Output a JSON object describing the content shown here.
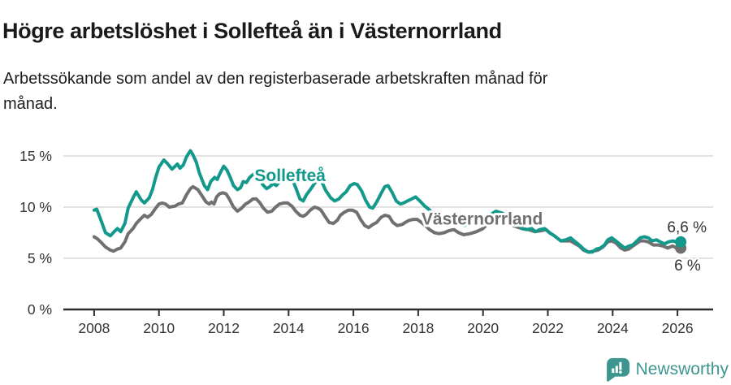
{
  "header": {
    "title": "Högre arbetslöshet i Sollefteå än i Västernorrland",
    "subtitle": "Arbetssökande som andel av den registerbaserade arbetskraften månad för månad."
  },
  "footer": {
    "brand": "Newsworthy",
    "brand_color": "#3C968F",
    "logo_icon": "chart-speech-bubble-icon"
  },
  "colors": {
    "solleftea_line": "#12998C",
    "vasternorrland_line": "#707070",
    "axis": "#2e2e2e",
    "tick_label": "#333333",
    "gridline": "#dcdcdc",
    "value_label": "#333333"
  },
  "chart_data": {
    "type": "line",
    "title": "Högre arbetslöshet i Sollefteå än i Västernorrland",
    "subtitle": "Arbetssökande som andel av den registerbaserade arbetskraften månad för månad.",
    "grid": "horizontal",
    "legend_position": "inline-labels",
    "xlim": [
      2007.05,
      2027.1
    ],
    "ylim": [
      0,
      16.9
    ],
    "x_ticks": [
      2008,
      2010,
      2012,
      2014,
      2016,
      2018,
      2020,
      2022,
      2024,
      2026
    ],
    "x_tick_labels": [
      "2008",
      "2010",
      "2012",
      "2014",
      "2016",
      "2018",
      "2020",
      "2022",
      "2024",
      "2026"
    ],
    "y_ticks": [
      0,
      5,
      10,
      15
    ],
    "y_tick_labels": [
      "0 %",
      "5 %",
      "10 %",
      "15 %"
    ],
    "series": [
      {
        "name": "Västernorrland",
        "color": "#707070",
        "end_dot": true,
        "points": [
          [
            2008.0,
            7.1
          ],
          [
            2008.1,
            6.9
          ],
          [
            2008.2,
            6.6
          ],
          [
            2008.35,
            6.1
          ],
          [
            2008.5,
            5.8
          ],
          [
            2008.6,
            5.7
          ],
          [
            2008.72,
            5.9
          ],
          [
            2008.82,
            6.0
          ],
          [
            2008.95,
            6.6
          ],
          [
            2009.05,
            7.4
          ],
          [
            2009.2,
            7.9
          ],
          [
            2009.3,
            8.4
          ],
          [
            2009.45,
            8.9
          ],
          [
            2009.55,
            9.2
          ],
          [
            2009.65,
            9.0
          ],
          [
            2009.77,
            9.3
          ],
          [
            2009.9,
            9.9
          ],
          [
            2010.0,
            10.3
          ],
          [
            2010.1,
            10.4
          ],
          [
            2010.2,
            10.3
          ],
          [
            2010.32,
            10.0
          ],
          [
            2010.5,
            10.1
          ],
          [
            2010.6,
            10.3
          ],
          [
            2010.72,
            10.4
          ],
          [
            2010.85,
            11.2
          ],
          [
            2010.97,
            11.8
          ],
          [
            2011.05,
            12.0
          ],
          [
            2011.2,
            11.7
          ],
          [
            2011.35,
            11.0
          ],
          [
            2011.45,
            10.5
          ],
          [
            2011.55,
            10.3
          ],
          [
            2011.62,
            10.5
          ],
          [
            2011.7,
            10.3
          ],
          [
            2011.78,
            11.0
          ],
          [
            2011.87,
            11.3
          ],
          [
            2011.97,
            11.4
          ],
          [
            2012.07,
            11.3
          ],
          [
            2012.17,
            10.8
          ],
          [
            2012.3,
            10.0
          ],
          [
            2012.42,
            9.6
          ],
          [
            2012.55,
            9.9
          ],
          [
            2012.67,
            10.3
          ],
          [
            2012.78,
            10.5
          ],
          [
            2012.9,
            10.8
          ],
          [
            2013.0,
            10.8
          ],
          [
            2013.12,
            10.4
          ],
          [
            2013.22,
            9.9
          ],
          [
            2013.35,
            9.5
          ],
          [
            2013.48,
            9.6
          ],
          [
            2013.6,
            10.0
          ],
          [
            2013.72,
            10.3
          ],
          [
            2013.85,
            10.4
          ],
          [
            2013.97,
            10.4
          ],
          [
            2014.1,
            10.1
          ],
          [
            2014.22,
            9.6
          ],
          [
            2014.35,
            9.2
          ],
          [
            2014.45,
            9.1
          ],
          [
            2014.55,
            9.3
          ],
          [
            2014.67,
            9.7
          ],
          [
            2014.8,
            10.0
          ],
          [
            2014.9,
            9.9
          ],
          [
            2015.0,
            9.7
          ],
          [
            2015.12,
            9.1
          ],
          [
            2015.25,
            8.5
          ],
          [
            2015.38,
            8.4
          ],
          [
            2015.5,
            8.7
          ],
          [
            2015.6,
            9.2
          ],
          [
            2015.72,
            9.5
          ],
          [
            2015.85,
            9.7
          ],
          [
            2015.97,
            9.7
          ],
          [
            2016.1,
            9.5
          ],
          [
            2016.22,
            8.8
          ],
          [
            2016.35,
            8.2
          ],
          [
            2016.47,
            8.0
          ],
          [
            2016.6,
            8.3
          ],
          [
            2016.72,
            8.5
          ],
          [
            2016.85,
            9.0
          ],
          [
            2016.97,
            9.2
          ],
          [
            2017.1,
            9.1
          ],
          [
            2017.22,
            8.5
          ],
          [
            2017.35,
            8.2
          ],
          [
            2017.5,
            8.3
          ],
          [
            2017.6,
            8.5
          ],
          [
            2017.72,
            8.7
          ],
          [
            2017.85,
            8.8
          ],
          [
            2017.97,
            8.8
          ],
          [
            2018.1,
            8.5
          ],
          [
            2018.22,
            8.2
          ],
          [
            2018.35,
            7.8
          ],
          [
            2018.5,
            7.5
          ],
          [
            2018.65,
            7.4
          ],
          [
            2018.8,
            7.5
          ],
          [
            2018.95,
            7.7
          ],
          [
            2019.1,
            7.8
          ],
          [
            2019.25,
            7.5
          ],
          [
            2019.4,
            7.3
          ],
          [
            2019.6,
            7.4
          ],
          [
            2019.8,
            7.6
          ],
          [
            2020.0,
            7.9
          ],
          [
            2020.2,
            8.6
          ],
          [
            2020.4,
            9.0
          ],
          [
            2020.6,
            8.8
          ],
          [
            2020.8,
            8.4
          ],
          [
            2021.0,
            8.1
          ],
          [
            2021.2,
            7.9
          ],
          [
            2021.4,
            7.8
          ],
          [
            2021.6,
            7.6
          ],
          [
            2021.8,
            7.7
          ],
          [
            2021.95,
            7.8
          ],
          [
            2022.05,
            7.5
          ],
          [
            2022.2,
            7.2
          ],
          [
            2022.4,
            6.7
          ],
          [
            2022.55,
            6.7
          ],
          [
            2022.7,
            6.7
          ],
          [
            2022.85,
            6.4
          ],
          [
            2022.97,
            6.2
          ],
          [
            2023.1,
            5.8
          ],
          [
            2023.25,
            5.6
          ],
          [
            2023.4,
            5.7
          ],
          [
            2023.55,
            5.8
          ],
          [
            2023.7,
            6.1
          ],
          [
            2023.85,
            6.6
          ],
          [
            2023.97,
            6.7
          ],
          [
            2024.1,
            6.5
          ],
          [
            2024.25,
            6.0
          ],
          [
            2024.37,
            5.8
          ],
          [
            2024.5,
            5.9
          ],
          [
            2024.62,
            6.2
          ],
          [
            2024.72,
            6.4
          ],
          [
            2024.85,
            6.7
          ],
          [
            2024.97,
            6.7
          ],
          [
            2025.1,
            6.6
          ],
          [
            2025.25,
            6.3
          ],
          [
            2025.4,
            6.3
          ],
          [
            2025.55,
            6.2
          ],
          [
            2025.7,
            6.0
          ],
          [
            2025.85,
            6.2
          ],
          [
            2025.97,
            6.0
          ],
          [
            2026.1,
            6.0
          ]
        ]
      },
      {
        "name": "Sollefteå",
        "color": "#12998C",
        "end_dot": true,
        "points": [
          [
            2008.0,
            9.7
          ],
          [
            2008.08,
            9.8
          ],
          [
            2008.2,
            8.8
          ],
          [
            2008.35,
            7.5
          ],
          [
            2008.5,
            7.2
          ],
          [
            2008.62,
            7.6
          ],
          [
            2008.72,
            7.9
          ],
          [
            2008.82,
            7.6
          ],
          [
            2008.95,
            8.4
          ],
          [
            2009.05,
            9.9
          ],
          [
            2009.2,
            10.9
          ],
          [
            2009.3,
            11.5
          ],
          [
            2009.45,
            10.7
          ],
          [
            2009.55,
            10.4
          ],
          [
            2009.7,
            10.9
          ],
          [
            2009.8,
            11.7
          ],
          [
            2009.9,
            12.9
          ],
          [
            2010.0,
            13.9
          ],
          [
            2010.15,
            14.6
          ],
          [
            2010.25,
            14.3
          ],
          [
            2010.4,
            13.7
          ],
          [
            2010.5,
            14.0
          ],
          [
            2010.57,
            14.2
          ],
          [
            2010.65,
            13.8
          ],
          [
            2010.75,
            14.1
          ],
          [
            2010.85,
            14.9
          ],
          [
            2010.97,
            15.5
          ],
          [
            2011.05,
            15.1
          ],
          [
            2011.15,
            14.4
          ],
          [
            2011.25,
            13.3
          ],
          [
            2011.4,
            12.1
          ],
          [
            2011.5,
            11.7
          ],
          [
            2011.6,
            12.5
          ],
          [
            2011.72,
            12.9
          ],
          [
            2011.8,
            12.7
          ],
          [
            2011.9,
            13.4
          ],
          [
            2012.0,
            14.0
          ],
          [
            2012.1,
            13.6
          ],
          [
            2012.2,
            12.9
          ],
          [
            2012.3,
            12.1
          ],
          [
            2012.42,
            11.7
          ],
          [
            2012.52,
            11.9
          ],
          [
            2012.6,
            12.5
          ],
          [
            2012.7,
            12.4
          ],
          [
            2012.8,
            12.9
          ],
          [
            2012.95,
            13.3
          ],
          [
            2013.05,
            13.4
          ],
          [
            2013.2,
            12.2
          ],
          [
            2013.32,
            11.8
          ],
          [
            2013.42,
            12.0
          ],
          [
            2013.52,
            12.3
          ],
          [
            2013.62,
            12.1
          ],
          [
            2013.75,
            12.6
          ],
          [
            2013.9,
            13.1
          ],
          [
            2014.0,
            13.3
          ],
          [
            2014.1,
            12.8
          ],
          [
            2014.22,
            11.9
          ],
          [
            2014.35,
            10.8
          ],
          [
            2014.45,
            10.6
          ],
          [
            2014.55,
            11.2
          ],
          [
            2014.67,
            11.7
          ],
          [
            2014.8,
            12.3
          ],
          [
            2014.9,
            12.7
          ],
          [
            2015.02,
            12.5
          ],
          [
            2015.15,
            11.6
          ],
          [
            2015.3,
            10.9
          ],
          [
            2015.42,
            10.6
          ],
          [
            2015.55,
            10.8
          ],
          [
            2015.67,
            11.2
          ],
          [
            2015.78,
            11.5
          ],
          [
            2015.9,
            12.1
          ],
          [
            2016.02,
            12.3
          ],
          [
            2016.12,
            12.2
          ],
          [
            2016.25,
            11.6
          ],
          [
            2016.37,
            10.7
          ],
          [
            2016.5,
            10.0
          ],
          [
            2016.6,
            9.9
          ],
          [
            2016.72,
            10.5
          ],
          [
            2016.85,
            11.3
          ],
          [
            2016.97,
            12.0
          ],
          [
            2017.07,
            12.1
          ],
          [
            2017.2,
            11.4
          ],
          [
            2017.32,
            10.6
          ],
          [
            2017.45,
            10.3
          ],
          [
            2017.55,
            10.4
          ],
          [
            2017.67,
            10.6
          ],
          [
            2017.8,
            10.8
          ],
          [
            2017.92,
            11.0
          ],
          [
            2018.05,
            10.6
          ],
          [
            2018.2,
            10.1
          ],
          [
            2018.32,
            9.8
          ],
          [
            2018.5,
            9.2
          ],
          [
            2018.7,
            8.8
          ],
          [
            2018.9,
            8.7
          ],
          [
            2019.0,
            8.9
          ],
          [
            2019.2,
            8.5
          ],
          [
            2019.4,
            8.2
          ],
          [
            2019.6,
            8.3
          ],
          [
            2019.8,
            8.4
          ],
          [
            2020.0,
            8.6
          ],
          [
            2020.2,
            9.2
          ],
          [
            2020.4,
            9.6
          ],
          [
            2020.6,
            9.4
          ],
          [
            2020.8,
            9.0
          ],
          [
            2021.0,
            8.6
          ],
          [
            2021.2,
            7.9
          ],
          [
            2021.35,
            7.8
          ],
          [
            2021.5,
            7.9
          ],
          [
            2021.62,
            7.6
          ],
          [
            2021.75,
            7.8
          ],
          [
            2021.9,
            7.9
          ],
          [
            2022.05,
            7.5
          ],
          [
            2022.2,
            7.2
          ],
          [
            2022.4,
            6.7
          ],
          [
            2022.55,
            6.8
          ],
          [
            2022.7,
            7.0
          ],
          [
            2022.85,
            6.6
          ],
          [
            2022.97,
            6.3
          ],
          [
            2023.1,
            5.9
          ],
          [
            2023.25,
            5.6
          ],
          [
            2023.37,
            5.6
          ],
          [
            2023.5,
            5.9
          ],
          [
            2023.62,
            6.0
          ],
          [
            2023.75,
            6.3
          ],
          [
            2023.85,
            6.8
          ],
          [
            2023.97,
            7.0
          ],
          [
            2024.1,
            6.7
          ],
          [
            2024.25,
            6.3
          ],
          [
            2024.37,
            6.0
          ],
          [
            2024.5,
            6.2
          ],
          [
            2024.62,
            6.3
          ],
          [
            2024.72,
            6.6
          ],
          [
            2024.85,
            7.0
          ],
          [
            2024.97,
            7.1
          ],
          [
            2025.1,
            7.0
          ],
          [
            2025.22,
            6.7
          ],
          [
            2025.35,
            6.8
          ],
          [
            2025.47,
            6.6
          ],
          [
            2025.6,
            6.4
          ],
          [
            2025.72,
            6.6
          ],
          [
            2025.85,
            6.7
          ],
          [
            2025.97,
            6.6
          ],
          [
            2026.1,
            6.6
          ]
        ]
      }
    ],
    "annotations": [
      {
        "text": "Sollefteå",
        "x": 2012.95,
        "y": 12.55,
        "anchor": "start",
        "color": "#12998C",
        "bold": true,
        "size": 21,
        "halo": true
      },
      {
        "text": "Västernorrland",
        "x": 2018.1,
        "y": 8.3,
        "anchor": "start",
        "color": "#707070",
        "bold": true,
        "size": 21,
        "halo": true
      },
      {
        "text": "6,6 %",
        "x": 2026.9,
        "y": 7.55,
        "anchor": "end",
        "color": "#333333",
        "bold": false,
        "size": 19,
        "halo": true
      },
      {
        "text": "6 %",
        "x": 2026.72,
        "y": 3.8,
        "anchor": "end",
        "color": "#333333",
        "bold": false,
        "size": 19,
        "halo": true
      }
    ]
  }
}
